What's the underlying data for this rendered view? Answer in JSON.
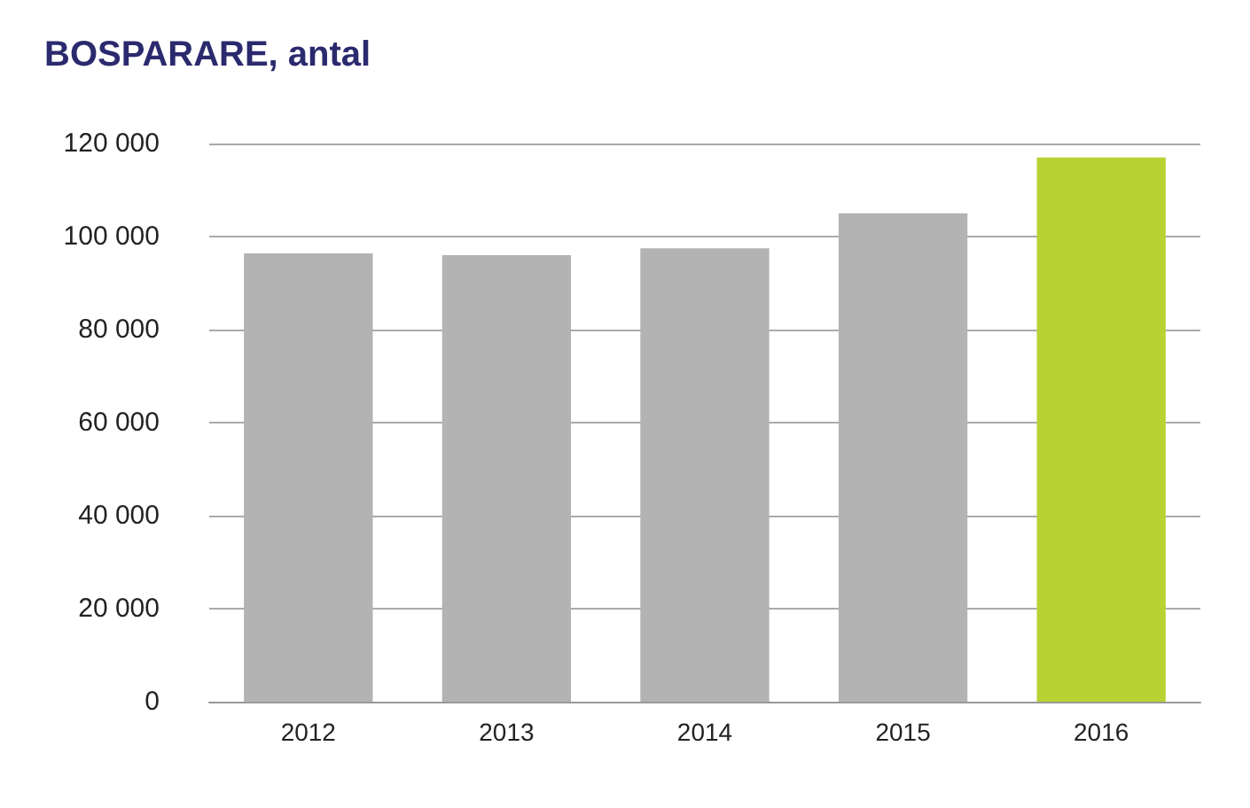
{
  "chart_data": {
    "type": "bar",
    "title": "BOSPARARE, antal",
    "categories": [
      "2012",
      "2013",
      "2014",
      "2015",
      "2016"
    ],
    "values": [
      96400,
      96000,
      97500,
      105000,
      117000
    ],
    "colors": [
      "#b3b3b3",
      "#b3b3b3",
      "#b3b3b3",
      "#b3b3b3",
      "#b8d233"
    ],
    "ylim": [
      0,
      120000
    ],
    "yticks": [
      0,
      20000,
      40000,
      60000,
      80000,
      100000,
      120000
    ],
    "grid": "y"
  }
}
